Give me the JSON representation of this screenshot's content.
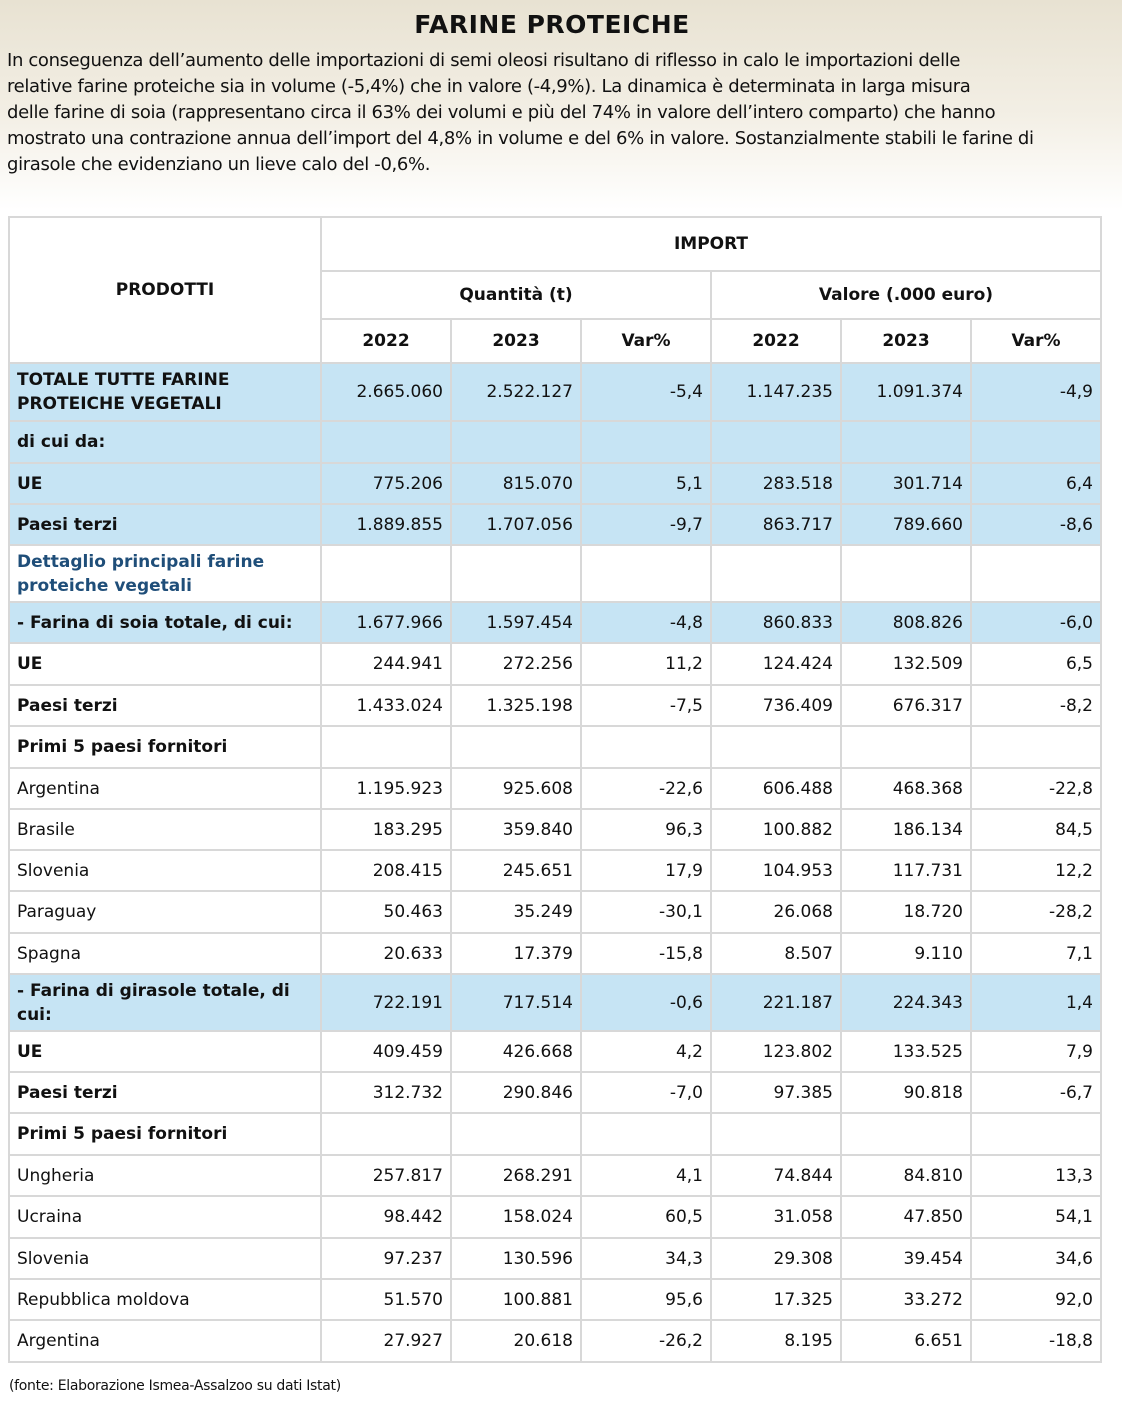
{
  "header": {
    "title": "FARINE PROTEICHE",
    "paragraph": [
      "In conseguenza dell’aumento delle importazioni di semi oleosi risultano di riflesso in calo le importazioni delle",
      "relative farine proteiche sia in volume (-5,4%) che in valore (-4,9%). La dinamica è determinata in larga misura",
      "delle farine di soia (rappresentano circa il 63% dei volumi e più del 74% in valore dell’intero comparto) che hanno",
      "mostrato una contrazione annua dell’import del 4,8% in volume e del 6% in valore. Sostanzialmente stabili le farine di",
      "girasole che evidenziano un lieve calo del -0,6%."
    ]
  },
  "table": {
    "col_head": "PRODOTTI",
    "group": "IMPORT",
    "sub": [
      "Quantità (t)",
      "Valore (.000 euro)"
    ],
    "years": [
      "2022",
      "2023",
      "Var%",
      "2022",
      "2023",
      "Var%"
    ],
    "rows": [
      {
        "label": "TOTALE TUTTE FARINE PROTEICHE VEGETALI",
        "cells": [
          "2.665.060",
          "2.522.127",
          "-5,4",
          "1.147.235",
          "1.091.374",
          "-4,9"
        ]
      },
      {
        "label": "di cui da:"
      },
      {
        "label": "UE",
        "cells": [
          "775.206",
          "815.070",
          "5,1",
          "283.518",
          "301.714",
          "6,4"
        ]
      },
      {
        "label": "Paesi terzi",
        "cells": [
          "1.889.855",
          "1.707.056",
          "-9,7",
          "863.717",
          "789.660",
          "-8,6"
        ]
      },
      {
        "label": "Dettaglio principali farine proteiche vegetali"
      },
      {
        "label": " - Farina di soia totale, di cui:",
        "cells": [
          "1.677.966",
          "1.597.454",
          "-4,8",
          "860.833",
          "808.826",
          "-6,0"
        ]
      },
      {
        "label": "UE",
        "cells": [
          "244.941",
          "272.256",
          "11,2",
          "124.424",
          "132.509",
          "6,5"
        ]
      },
      {
        "label": "Paesi terzi",
        "cells": [
          "1.433.024",
          "1.325.198",
          "-7,5",
          "736.409",
          "676.317",
          "-8,2"
        ]
      },
      {
        "label": "Primi 5 paesi fornitori"
      },
      {
        "label": "Argentina",
        "cells": [
          "1.195.923",
          "925.608",
          "-22,6",
          "606.488",
          "468.368",
          "-22,8"
        ]
      },
      {
        "label": "Brasile",
        "cells": [
          "183.295",
          "359.840",
          "96,3",
          "100.882",
          "186.134",
          "84,5"
        ]
      },
      {
        "label": "Slovenia",
        "cells": [
          "208.415",
          "245.651",
          "17,9",
          "104.953",
          "117.731",
          "12,2"
        ]
      },
      {
        "label": "Paraguay",
        "cells": [
          "50.463",
          "35.249",
          "-30,1",
          "26.068",
          "18.720",
          "-28,2"
        ]
      },
      {
        "label": "Spagna",
        "cells": [
          "20.633",
          "17.379",
          "-15,8",
          "8.507",
          "9.110",
          "7,1"
        ]
      },
      {
        "label": " - Farina di girasole totale, di cui:",
        "cells": [
          "722.191",
          "717.514",
          "-0,6",
          "221.187",
          "224.343",
          "1,4"
        ]
      },
      {
        "label": "UE",
        "cells": [
          "409.459",
          "426.668",
          "4,2",
          "123.802",
          "133.525",
          "7,9"
        ]
      },
      {
        "label": "Paesi terzi",
        "cells": [
          "312.732",
          "290.846",
          "-7,0",
          "97.385",
          "90.818",
          "-6,7"
        ]
      },
      {
        "label": "Primi 5 paesi fornitori"
      },
      {
        "label": "Ungheria",
        "cells": [
          "257.817",
          "268.291",
          "4,1",
          "74.844",
          "84.810",
          "13,3"
        ]
      },
      {
        "label": "Ucraina",
        "cells": [
          "98.442",
          "158.024",
          "60,5",
          "31.058",
          "47.850",
          "54,1"
        ]
      },
      {
        "label": "Slovenia",
        "cells": [
          "97.237",
          "130.596",
          "34,3",
          "29.308",
          "39.454",
          "34,6"
        ]
      },
      {
        "label": "Repubblica moldova",
        "cells": [
          "51.570",
          "100.881",
          "95,6",
          "17.325",
          "33.272",
          "92,0"
        ]
      },
      {
        "label": "Argentina",
        "cells": [
          "27.927",
          "20.618",
          "-26,2",
          "8.195",
          "6.651",
          "-18,8"
        ]
      }
    ]
  },
  "footer": "(fonte: Elaborazione Ismea-Assalzoo su dati Istat)"
}
